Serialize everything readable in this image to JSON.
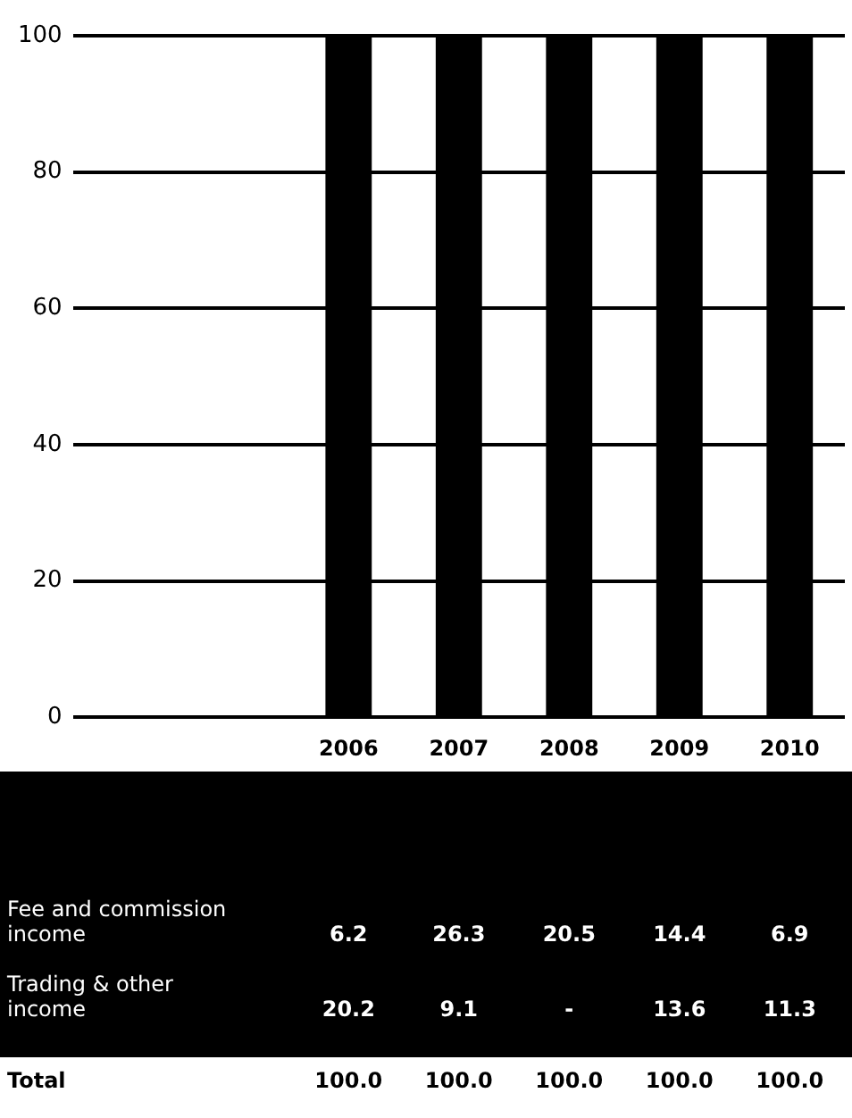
{
  "chart_data": {
    "type": "bar",
    "categories": [
      null,
      null,
      "2006",
      "2007",
      "2008",
      "2009",
      "2010"
    ],
    "values": [
      null,
      null,
      100,
      100,
      100,
      100,
      100
    ],
    "color": "#000000",
    "value_labels": [
      null,
      null,
      "100.0",
      "100.0",
      "100.0",
      "100.0",
      "100.0"
    ],
    "ylim": [
      0,
      100
    ],
    "yticks": [
      0,
      20,
      40,
      60,
      80,
      100
    ],
    "grid": "y",
    "annotations": [
      "Fee and commission income",
      "6.2",
      "26.3",
      "20.5",
      "14.4",
      "6.9",
      "Trading & other income",
      "20.2",
      "9.1",
      "-",
      "13.6",
      "11.3",
      "Total"
    ]
  }
}
